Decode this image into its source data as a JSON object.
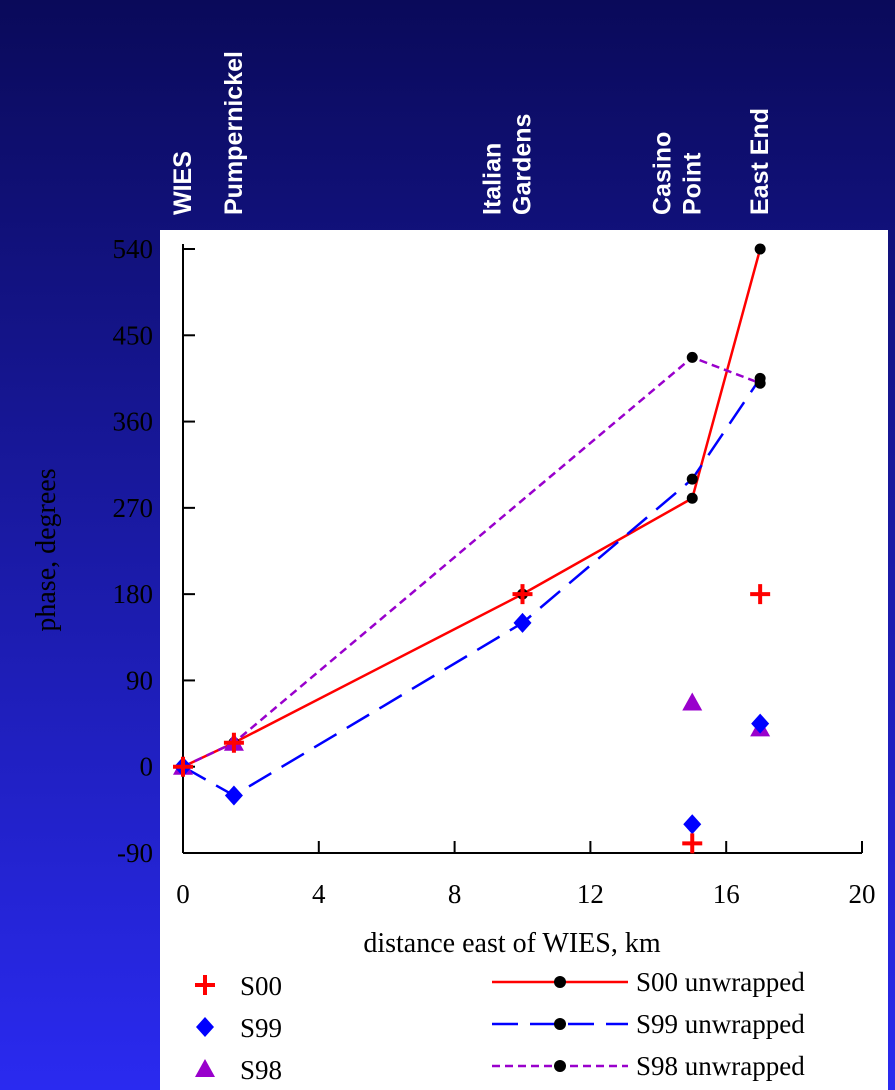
{
  "chart_data": {
    "type": "scatter-line",
    "x_label": "distance east of WIES, km",
    "y_label": "phase, degrees",
    "xlim": [
      0,
      20
    ],
    "xticks": [
      0,
      4,
      8,
      12,
      16,
      20
    ],
    "ylim": [
      -90,
      540
    ],
    "yticks": [
      -90,
      0,
      90,
      180,
      270,
      360,
      450,
      540
    ],
    "annotations": [
      {
        "x": 0,
        "lines": [
          "WIES"
        ]
      },
      {
        "x": 1.5,
        "lines": [
          "Pumpernickel"
        ]
      },
      {
        "x": 10,
        "lines": [
          "Italian",
          "Gardens"
        ]
      },
      {
        "x": 15,
        "lines": [
          "Casino",
          "Point"
        ]
      },
      {
        "x": 17,
        "lines": [
          "East End"
        ]
      }
    ],
    "series": [
      {
        "name": "S00",
        "color": "#ff0000",
        "marker": "plus",
        "x": [
          0,
          1.5,
          10,
          15,
          17
        ],
        "values": [
          0,
          25,
          180,
          -80,
          180
        ]
      },
      {
        "name": "S99",
        "color": "#0000ff",
        "marker": "diamond",
        "x": [
          0,
          1.5,
          10,
          15,
          17
        ],
        "values": [
          0,
          -30,
          150,
          -60,
          45
        ]
      },
      {
        "name": "S98",
        "color": "#9900cc",
        "marker": "triangle",
        "x": [
          0,
          1.5,
          15,
          17
        ],
        "values": [
          0,
          25,
          67,
          40
        ]
      },
      {
        "name": "S00 unwrapped",
        "color": "#ff0000",
        "line": "solid",
        "x": [
          0,
          1.5,
          10,
          15,
          17
        ],
        "values": [
          0,
          25,
          180,
          280,
          540
        ]
      },
      {
        "name": "S99 unwrapped",
        "color": "#0000ff",
        "line": "longdash",
        "x": [
          0,
          1.5,
          10,
          15,
          17
        ],
        "values": [
          0,
          -30,
          150,
          300,
          405
        ]
      },
      {
        "name": "S98 unwrapped",
        "color": "#9900cc",
        "line": "shortdash",
        "x": [
          0,
          1.5,
          15,
          17
        ],
        "values": [
          0,
          25,
          427,
          400
        ]
      }
    ]
  }
}
